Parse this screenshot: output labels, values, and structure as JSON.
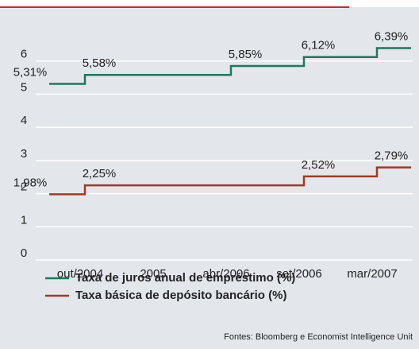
{
  "chart_data": {
    "type": "step",
    "categories": [
      null,
      "out/2004",
      "2005",
      "abr/2006",
      "set/2006",
      "mar/2007"
    ],
    "series": [
      {
        "name": "Taxa de juros anual de empréstimo (%)",
        "color": "#1a7a5c",
        "values": [
          5.31,
          5.58,
          5.58,
          5.85,
          6.12,
          6.39
        ],
        "value_labels": [
          "5,31%",
          "5,58%",
          null,
          "5,85%",
          "6,12%",
          "6,39%"
        ]
      },
      {
        "name": "Taxa básica de depósito bancário (%)",
        "color": "#a23a22",
        "values": [
          1.98,
          2.25,
          2.25,
          2.25,
          2.52,
          2.79
        ],
        "value_labels": [
          "1,98%",
          "2,25%",
          null,
          null,
          "2,52%",
          "2,79%"
        ]
      }
    ],
    "ylim": [
      0,
      7
    ],
    "yticks": [
      0,
      1,
      2,
      3,
      4,
      5,
      6
    ],
    "grid": true,
    "source": "Fontes: Bloomberg e Economist Intelligence Unit"
  }
}
